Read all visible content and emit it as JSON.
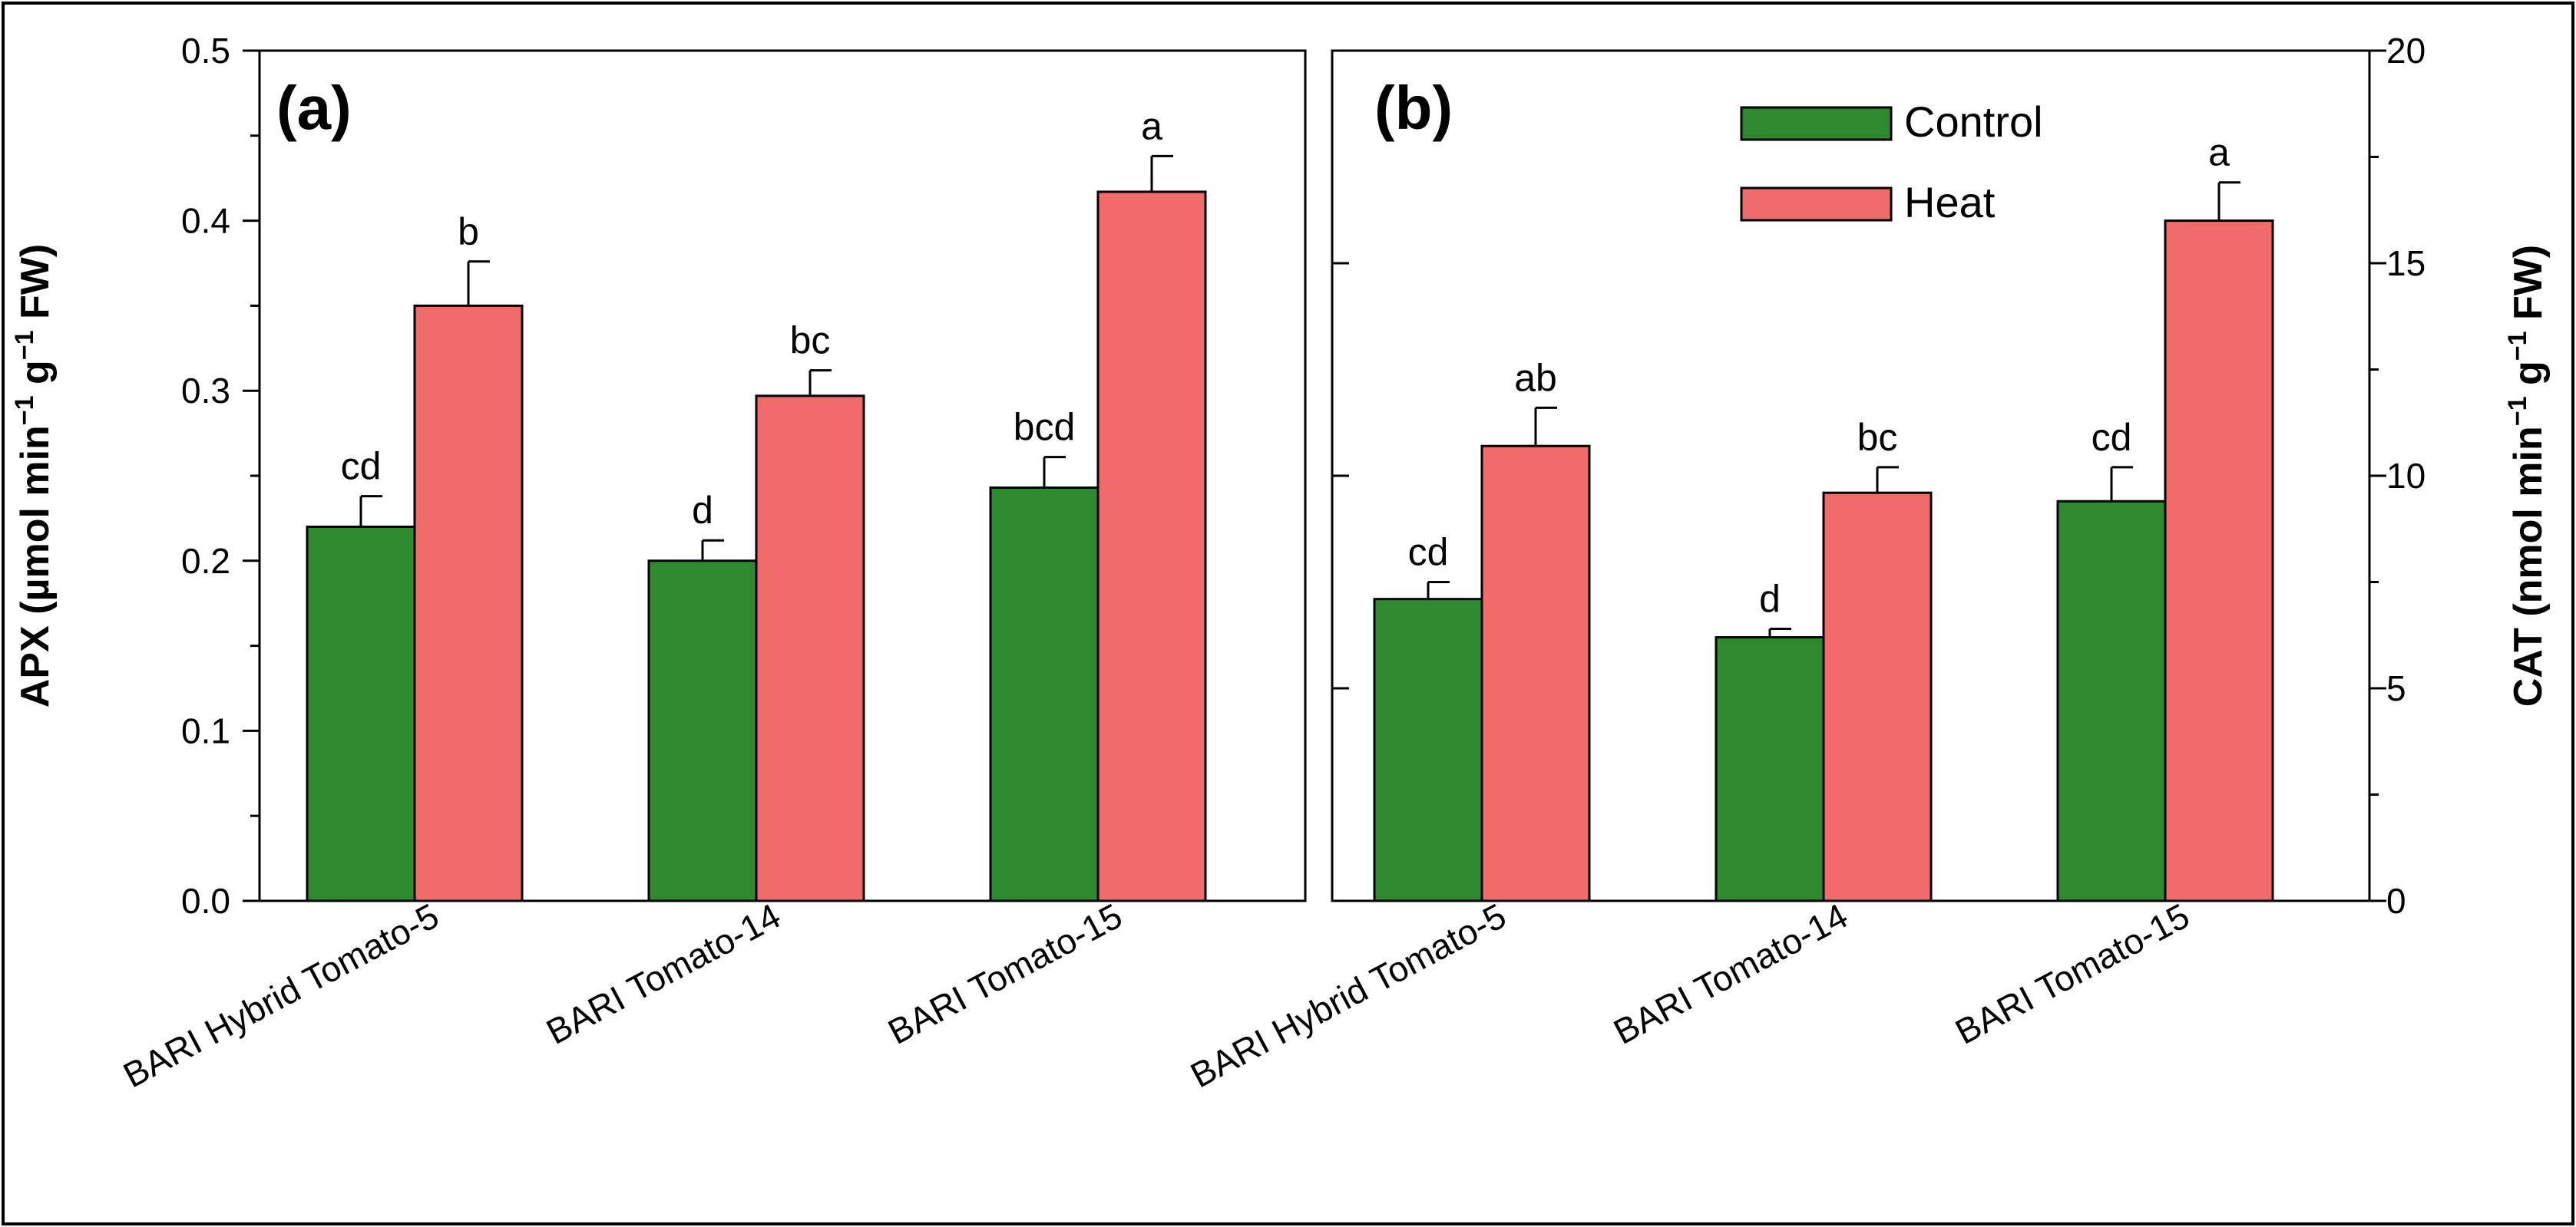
{
  "colors": {
    "control": "#2f8a2f",
    "heat": "#f26b6b",
    "axis": "#000000",
    "background": "#ffffff"
  },
  "legend": {
    "items": [
      {
        "label": "Control",
        "color": "#2f8a2f"
      },
      {
        "label": "Heat",
        "color": "#f26b6b"
      }
    ],
    "placement": "top-center of panel b"
  },
  "chart_data": [
    {
      "panel_label": "(a)",
      "type": "bar",
      "title": "",
      "xlabel": "",
      "ylabel_main": "APX (µmol min",
      "ylabel_sup1": "−1",
      "ylabel_mid": " g",
      "ylabel_sup2": "−1",
      "ylabel_end": " FW)",
      "ylim": [
        0,
        0.5
      ],
      "yticks": [
        0.0,
        0.1,
        0.2,
        0.3,
        0.4,
        0.5
      ],
      "ytick_labels": [
        "0.0",
        "0.1",
        "0.2",
        "0.3",
        "0.4",
        "0.5"
      ],
      "y_axis_side": "left",
      "categories": [
        "BARI Hybrid Tomato-5",
        "BARI Tomato-14",
        "BARI Tomato-15"
      ],
      "series": [
        {
          "name": "Control",
          "values": [
            0.22,
            0.2,
            0.243
          ],
          "errors": [
            0.018,
            0.012,
            0.018
          ],
          "letters": [
            "cd",
            "d",
            "bcd"
          ]
        },
        {
          "name": "Heat",
          "values": [
            0.35,
            0.297,
            0.417
          ],
          "errors": [
            0.026,
            0.015,
            0.021
          ],
          "letters": [
            "b",
            "bc",
            "a"
          ]
        }
      ]
    },
    {
      "panel_label": "(b)",
      "type": "bar",
      "title": "",
      "xlabel": "",
      "ylabel_main": "CAT (nmol min",
      "ylabel_sup1": "−1",
      "ylabel_mid": " g",
      "ylabel_sup2": "−1",
      "ylabel_end": " FW)",
      "ylim": [
        0,
        20
      ],
      "yticks": [
        0,
        5,
        10,
        15,
        20
      ],
      "ytick_labels": [
        "0",
        "5",
        "10",
        "15",
        "20"
      ],
      "y_axis_side": "right",
      "categories": [
        "BARI Hybrid Tomato-5",
        "BARI Tomato-14",
        "BARI Tomato-15"
      ],
      "series": [
        {
          "name": "Control",
          "values": [
            7.1,
            6.2,
            9.4
          ],
          "errors": [
            0.4,
            0.2,
            0.8
          ],
          "letters": [
            "cd",
            "d",
            "cd"
          ]
        },
        {
          "name": "Heat",
          "values": [
            10.7,
            9.6,
            16.0
          ],
          "errors": [
            0.9,
            0.6,
            0.9
          ],
          "letters": [
            "ab",
            "bc",
            "a"
          ]
        }
      ]
    }
  ]
}
